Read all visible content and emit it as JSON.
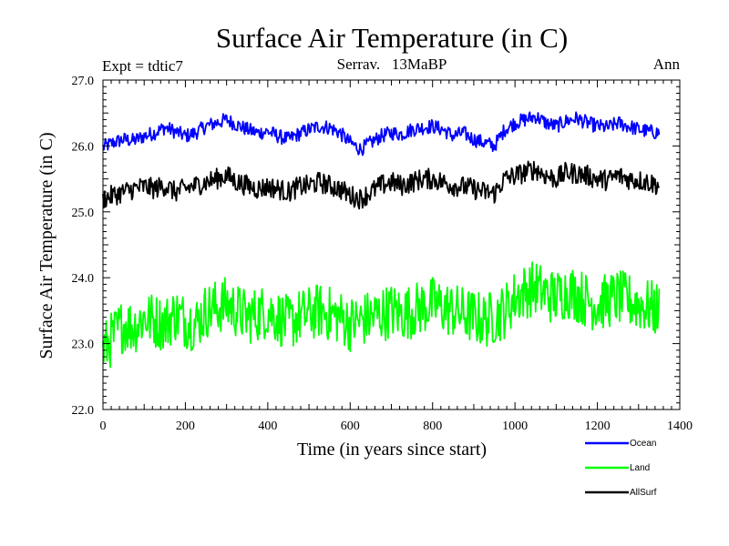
{
  "chart_data": {
    "type": "line",
    "title": "Surface Air Temperature (in C)",
    "subtitle_left": "Expt = tdtic7",
    "subtitle_center": "Serrav.   13MaBP",
    "subtitle_right": "Ann",
    "xlabel": "Time (in years since start)",
    "ylabel": "Surface Air Temperature (in C)",
    "xlim": [
      0,
      1400
    ],
    "ylim": [
      22.0,
      27.0
    ],
    "xticks": [
      0,
      200,
      400,
      600,
      800,
      1000,
      1200,
      1400
    ],
    "xtick_labels": [
      "0",
      "200",
      "400",
      "600",
      "800",
      "1000",
      "1200",
      "1400"
    ],
    "yticks": [
      22.0,
      23.0,
      24.0,
      25.0,
      26.0,
      27.0
    ],
    "ytick_labels": [
      "22.0",
      "23.0",
      "24.0",
      "25.0",
      "26.0",
      "27.0"
    ],
    "grid": false,
    "legend_position": "bottom-right outside",
    "x": [
      0,
      25,
      50,
      75,
      100,
      125,
      150,
      175,
      200,
      225,
      250,
      275,
      300,
      325,
      350,
      375,
      400,
      425,
      450,
      475,
      500,
      525,
      550,
      575,
      600,
      625,
      650,
      675,
      700,
      725,
      750,
      775,
      800,
      825,
      850,
      875,
      900,
      925,
      950,
      975,
      1000,
      1025,
      1050,
      1075,
      1100,
      1125,
      1150,
      1175,
      1200,
      1225,
      1250,
      1275,
      1300,
      1325,
      1350
    ],
    "series": [
      {
        "name": "Ocean",
        "color": "#0000ff",
        "values": [
          25.98,
          26.05,
          26.1,
          26.08,
          26.15,
          26.2,
          26.28,
          26.22,
          26.15,
          26.2,
          26.3,
          26.35,
          26.4,
          26.32,
          26.25,
          26.2,
          26.22,
          26.15,
          26.1,
          26.18,
          26.25,
          26.3,
          26.28,
          26.2,
          26.05,
          25.95,
          26.05,
          26.15,
          26.2,
          26.18,
          26.25,
          26.28,
          26.3,
          26.25,
          26.15,
          26.2,
          26.1,
          26.05,
          26.0,
          26.25,
          26.35,
          26.4,
          26.45,
          26.35,
          26.3,
          26.38,
          26.42,
          26.35,
          26.3,
          26.28,
          26.35,
          26.3,
          26.25,
          26.22,
          26.2
        ]
      },
      {
        "name": "Land",
        "color": "#00ff00",
        "values": [
          22.9,
          23.1,
          23.3,
          23.25,
          23.4,
          23.35,
          23.3,
          23.45,
          23.35,
          23.3,
          23.5,
          23.55,
          23.6,
          23.5,
          23.4,
          23.45,
          23.5,
          23.4,
          23.3,
          23.4,
          23.45,
          23.5,
          23.45,
          23.4,
          23.3,
          23.35,
          23.4,
          23.45,
          23.5,
          23.45,
          23.5,
          23.55,
          23.6,
          23.55,
          23.5,
          23.45,
          23.4,
          23.35,
          23.4,
          23.5,
          23.7,
          23.8,
          23.85,
          23.75,
          23.7,
          23.8,
          23.75,
          23.65,
          23.6,
          23.65,
          23.7,
          23.65,
          23.6,
          23.55,
          23.5
        ]
      },
      {
        "name": "AllSurf",
        "color": "#000000",
        "values": [
          25.2,
          25.25,
          25.3,
          25.35,
          25.38,
          25.35,
          25.4,
          25.3,
          25.35,
          25.4,
          25.45,
          25.5,
          25.55,
          25.45,
          25.4,
          25.35,
          25.38,
          25.35,
          25.3,
          25.38,
          25.4,
          25.45,
          25.4,
          25.35,
          25.25,
          25.2,
          25.3,
          25.4,
          25.45,
          25.4,
          25.45,
          25.5,
          25.5,
          25.45,
          25.4,
          25.38,
          25.35,
          25.3,
          25.28,
          25.5,
          25.55,
          25.6,
          25.65,
          25.55,
          25.5,
          25.6,
          25.58,
          25.55,
          25.5,
          25.48,
          25.55,
          25.5,
          25.48,
          25.45,
          25.4
        ]
      }
    ]
  }
}
